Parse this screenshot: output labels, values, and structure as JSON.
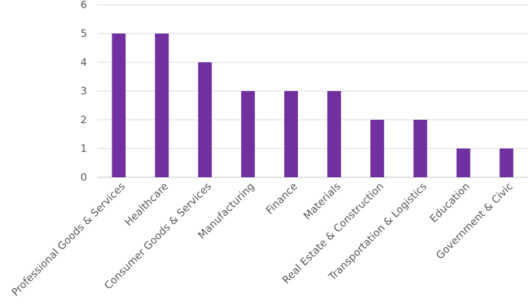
{
  "chart_data": {
    "type": "bar",
    "title": "",
    "xlabel": "",
    "ylabel": "",
    "categories": [
      "Professional Goods & Services",
      "Healthcare",
      "Consumer Goods & Services",
      "Manufacturing",
      "Finance",
      "Materials",
      "Real Estate & Construction",
      "Transportation & Logistics",
      "Education",
      "Government & Civic"
    ],
    "values": [
      5,
      5,
      4,
      3,
      3,
      3,
      2,
      2,
      1,
      1
    ],
    "ylim": [
      0,
      6
    ],
    "yticks": [
      0,
      1,
      2,
      3,
      4,
      5,
      6
    ],
    "grid": true,
    "legend": "none",
    "bar_color": "#7030a0"
  }
}
